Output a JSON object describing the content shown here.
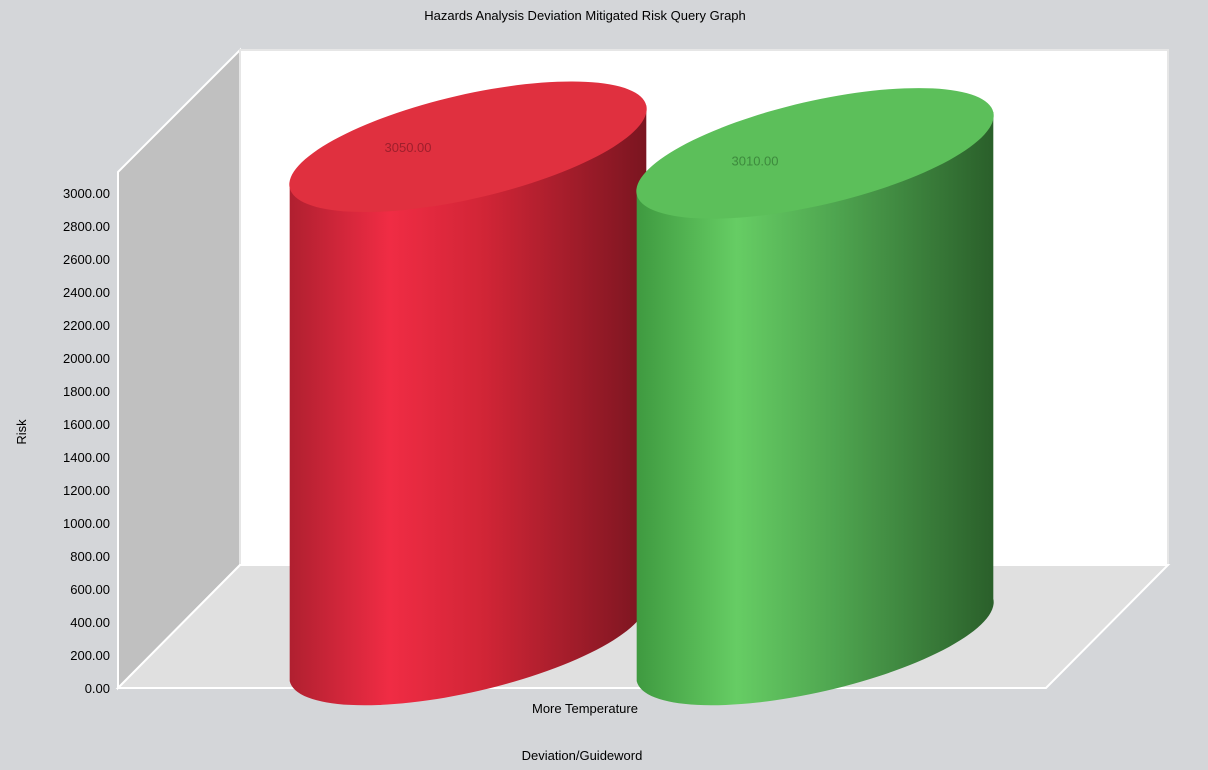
{
  "chart_data": {
    "type": "bar",
    "title": "Hazards Analysis Deviation Mitigated Risk Query Graph",
    "xlabel": "Deviation/Guideword",
    "ylabel": "Risk",
    "categories": [
      "More Temperature"
    ],
    "series": [
      {
        "values": [
          3050.0
        ],
        "color": "#e0303f",
        "data_label": "3050.00"
      },
      {
        "values": [
          3010.0
        ],
        "color": "#5cbf5a",
        "data_label": "3010.00"
      }
    ],
    "ylim": [
      0,
      3000
    ],
    "yticks": [
      "0.00",
      "200.00",
      "400.00",
      "600.00",
      "800.00",
      "1000.00",
      "1200.00",
      "1400.00",
      "1600.00",
      "1800.00",
      "2000.00",
      "2200.00",
      "2400.00",
      "2600.00",
      "2800.00",
      "3000.00"
    ],
    "bar_shape": "cylinder",
    "style": "3d",
    "grid": false,
    "legend": "none",
    "colors": {
      "background": "#d4d6d9",
      "back_wall": "#ffffff",
      "side_wall": "#c0c0c0",
      "floor": "#e0e0e0"
    }
  }
}
